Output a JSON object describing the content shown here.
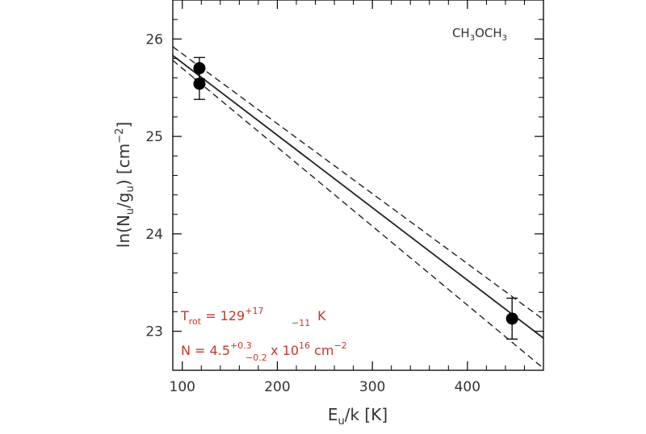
{
  "chart_data": {
    "type": "scatter",
    "molecule": {
      "main": "CH",
      "sub1": "3",
      "mid": "OCH",
      "sub2": "3"
    },
    "xlabel": {
      "a": "E",
      "sub": "u",
      "b": "/k  [K]"
    },
    "ylabel": {
      "a": "ln(N",
      "sub1": "u",
      "b": "/g",
      "sub2": "u",
      "c": ")  [cm",
      "sup": "−2",
      "d": "]"
    },
    "xlim": [
      90,
      480
    ],
    "ylim": [
      22.6,
      26.4
    ],
    "x_ticks": [
      100,
      200,
      300,
      400
    ],
    "x_tick_labels": [
      "100",
      "200",
      "300",
      "400"
    ],
    "y_ticks": [
      23,
      24,
      25,
      26
    ],
    "y_tick_labels": [
      "23",
      "24",
      "25",
      "26"
    ],
    "series": [
      {
        "kind": "points",
        "x": [
          118,
          118,
          447
        ],
        "y": [
          25.7,
          25.54,
          23.13
        ],
        "yerr": [
          0.11,
          0.16,
          0.21
        ]
      },
      {
        "kind": "fit",
        "style": "solid",
        "x": [
          90,
          480
        ],
        "y": [
          25.83,
          22.93
        ]
      },
      {
        "kind": "bound",
        "style": "dashed",
        "x": [
          90,
          480
        ],
        "y": [
          25.92,
          23.12
        ]
      },
      {
        "kind": "bound",
        "style": "dashed",
        "x": [
          90,
          480
        ],
        "y": [
          25.78,
          22.62
        ]
      }
    ],
    "annotations": {
      "trot": {
        "a": "T",
        "sub": "rot",
        "b": " = 129",
        "sup": "+17",
        "sub2": "−11",
        "c": " K"
      },
      "ncol": {
        "a": "N = 4.5",
        "sup": "+0.3",
        "sub": "−0.2",
        "b": " x 10",
        "sup2": "16",
        "c": " cm",
        "sup3": "−2"
      }
    },
    "colors": {
      "axis": "#000000",
      "text": "#333333",
      "annotation": "#c0392b"
    }
  }
}
